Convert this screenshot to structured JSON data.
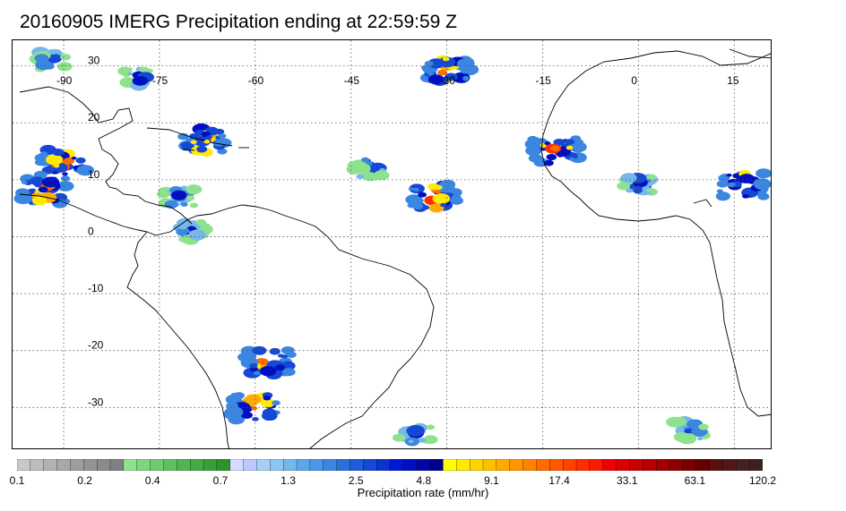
{
  "title": "20160905 IMERG Precipitation ending at 22:59:59 Z",
  "map": {
    "lon_labels": [
      {
        "value": -90,
        "text": "-90"
      },
      {
        "value": -75,
        "text": "-75"
      },
      {
        "value": -60,
        "text": "-60"
      },
      {
        "value": -45,
        "text": "-45"
      },
      {
        "value": -30,
        "text": "-30"
      },
      {
        "value": -15,
        "text": "-15"
      },
      {
        "value": 0,
        "text": "0"
      },
      {
        "value": 15,
        "text": "15"
      }
    ],
    "lat_labels": [
      {
        "value": 30,
        "text": "30"
      },
      {
        "value": 20,
        "text": "20"
      },
      {
        "value": 10,
        "text": "10"
      },
      {
        "value": 0,
        "text": "0"
      },
      {
        "value": -10,
        "text": "-10"
      },
      {
        "value": -20,
        "text": "-20"
      },
      {
        "value": -30,
        "text": "-30"
      }
    ],
    "extent": {
      "lon_min": -98,
      "lon_max": 21,
      "lat_min": -37.5,
      "lat_max": 34.5
    },
    "gridlines": "dotted"
  },
  "colorbar": {
    "label": "Precipitation rate (mm/hr)",
    "tick_labels": [
      "0.1",
      "0.2",
      "0.4",
      "0.7",
      "1.3",
      "2.5",
      "4.8",
      "9.1",
      "17.4",
      "33.1",
      "63.1",
      "120.2"
    ],
    "colors": [
      "#c8c8c8",
      "#bdbdbd",
      "#b2b2b2",
      "#a8a8a8",
      "#9e9e9e",
      "#949494",
      "#8a8a8a",
      "#808080",
      "#8ee28e",
      "#7ed67e",
      "#6fcb6f",
      "#60c060",
      "#52b552",
      "#45aa45",
      "#389f38",
      "#2c942c",
      "#d6dcff",
      "#bcc9ff",
      "#a8d0f5",
      "#8ec4f0",
      "#74b8eb",
      "#5aa8e8",
      "#4a98e5",
      "#3a86e0",
      "#2a70dc",
      "#1f5cd8",
      "#1548d4",
      "#0a34d0",
      "#0018d8",
      "#0010c0",
      "#0008a8",
      "#000090",
      "#ffff00",
      "#ffea00",
      "#ffd500",
      "#ffc000",
      "#ffab00",
      "#ff9600",
      "#ff8100",
      "#ff6c00",
      "#ff5700",
      "#ff4200",
      "#ff2d00",
      "#ff1800",
      "#f00000",
      "#dc0000",
      "#c80000",
      "#b40000",
      "#a00000",
      "#8c0000",
      "#780000",
      "#640000",
      "#5a1010",
      "#501818",
      "#462020",
      "#3c2020"
    ]
  },
  "precip_clusters": [
    {
      "lon": -92,
      "lat": 31,
      "level": "moderate"
    },
    {
      "lon": -78,
      "lat": 28,
      "level": "moderate"
    },
    {
      "lon": -68,
      "lat": 17,
      "level": "heavy"
    },
    {
      "lon": -90,
      "lat": 13,
      "level": "heavy"
    },
    {
      "lon": -93,
      "lat": 8,
      "level": "heavy"
    },
    {
      "lon": -72,
      "lat": 7,
      "level": "moderate"
    },
    {
      "lon": -70,
      "lat": 1,
      "level": "moderate"
    },
    {
      "lon": -42,
      "lat": 12,
      "level": "moderate"
    },
    {
      "lon": -30,
      "lat": 29,
      "level": "heavy"
    },
    {
      "lon": -32,
      "lat": 7,
      "level": "heavy"
    },
    {
      "lon": -13,
      "lat": 15,
      "level": "heavy"
    },
    {
      "lon": 16,
      "lat": 9,
      "level": "heavy"
    },
    {
      "lon": 0,
      "lat": 9,
      "level": "moderate"
    },
    {
      "lon": -58,
      "lat": -22,
      "level": "heavy"
    },
    {
      "lon": -60,
      "lat": -30,
      "level": "heavy"
    },
    {
      "lon": -35,
      "lat": -35,
      "level": "moderate"
    },
    {
      "lon": 8,
      "lat": -34,
      "level": "moderate"
    }
  ]
}
